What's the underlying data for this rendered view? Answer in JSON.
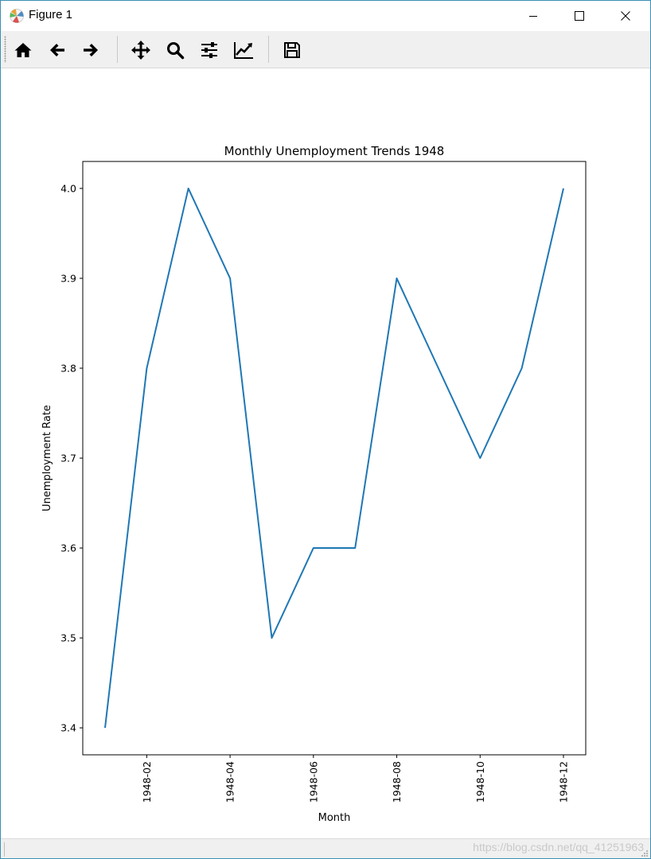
{
  "window": {
    "title": "Figure 1"
  },
  "toolbar": {
    "buttons": [
      {
        "name": "home-button",
        "icon": "home-icon"
      },
      {
        "name": "back-button",
        "icon": "arrow-left-icon"
      },
      {
        "name": "forward-button",
        "icon": "arrow-right-icon"
      },
      {
        "name": "pan-button",
        "icon": "move-icon"
      },
      {
        "name": "zoom-button",
        "icon": "magnifier-icon"
      },
      {
        "name": "configure-subplots-button",
        "icon": "sliders-icon"
      },
      {
        "name": "edit-axis-button",
        "icon": "line-chart-icon"
      },
      {
        "name": "save-button",
        "icon": "floppy-disk-icon"
      }
    ]
  },
  "status": {
    "watermark": "https://blog.csdn.net/qq_41251963"
  },
  "chart_data": {
    "type": "line",
    "title": "Monthly Unemployment Trends 1948",
    "xlabel": "Month",
    "ylabel": "Unemployment Rate",
    "x": [
      "1948-01",
      "1948-02",
      "1948-03",
      "1948-04",
      "1948-05",
      "1948-06",
      "1948-07",
      "1948-08",
      "1948-09",
      "1948-10",
      "1948-11",
      "1948-12"
    ],
    "series": [
      {
        "values": [
          3.4,
          3.8,
          4.0,
          3.9,
          3.5,
          3.6,
          3.6,
          3.9,
          3.8,
          3.7,
          3.8,
          4.0
        ],
        "color": "#1f77b4"
      }
    ],
    "xticks": [
      "1948-02",
      "1948-04",
      "1948-06",
      "1948-08",
      "1948-10",
      "1948-12"
    ],
    "yticks": [
      "3.4",
      "3.5",
      "3.6",
      "3.7",
      "3.8",
      "3.9",
      "4.0"
    ],
    "ylim": [
      3.37,
      4.03
    ],
    "grid": false
  }
}
